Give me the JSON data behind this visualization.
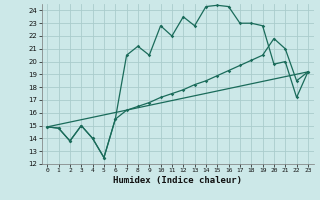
{
  "xlabel": "Humidex (Indice chaleur)",
  "xlim": [
    -0.5,
    23.5
  ],
  "ylim": [
    12,
    24.5
  ],
  "yticks": [
    12,
    13,
    14,
    15,
    16,
    17,
    18,
    19,
    20,
    21,
    22,
    23,
    24
  ],
  "xticks": [
    0,
    1,
    2,
    3,
    4,
    5,
    6,
    7,
    8,
    9,
    10,
    11,
    12,
    13,
    14,
    15,
    16,
    17,
    18,
    19,
    20,
    21,
    22,
    23
  ],
  "bg_color": "#cce8e8",
  "grid_color": "#aacccc",
  "line_color": "#1a6b5a",
  "line1_x": [
    0,
    1,
    2,
    3,
    4,
    5,
    6,
    7,
    8,
    9,
    10,
    11,
    12,
    13,
    14,
    15,
    16,
    17,
    18,
    19,
    20,
    21,
    22,
    23
  ],
  "line1_y": [
    14.9,
    14.8,
    13.8,
    15.0,
    14.0,
    12.5,
    15.5,
    20.5,
    21.2,
    20.5,
    22.8,
    22.0,
    23.5,
    22.8,
    24.3,
    24.4,
    24.3,
    23.0,
    23.0,
    22.8,
    19.8,
    20.0,
    17.2,
    19.2
  ],
  "line2_x": [
    0,
    1,
    2,
    3,
    4,
    5,
    6,
    7,
    8,
    9,
    10,
    11,
    12,
    13,
    14,
    15,
    16,
    17,
    18,
    19,
    20,
    21,
    22,
    23
  ],
  "line2_y": [
    14.9,
    14.8,
    13.8,
    15.0,
    14.0,
    12.5,
    15.5,
    16.2,
    16.5,
    16.8,
    17.2,
    17.5,
    17.8,
    18.2,
    18.5,
    18.9,
    19.3,
    19.7,
    20.1,
    20.5,
    21.8,
    21.0,
    18.5,
    19.2
  ],
  "line3_x": [
    0,
    23
  ],
  "line3_y": [
    14.9,
    19.2
  ]
}
